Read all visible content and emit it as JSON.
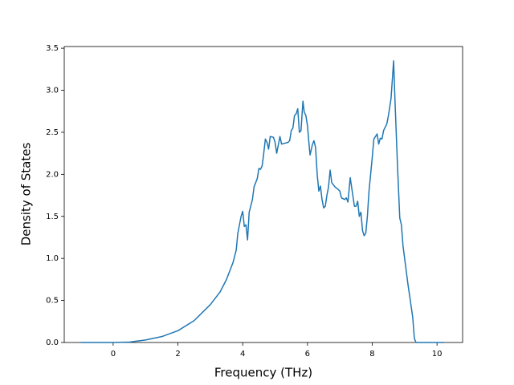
{
  "chart_data": {
    "type": "line",
    "x_label": "Frequency (THz)",
    "y_label": "Density of States",
    "xlim": [
      -1.51,
      10.79
    ],
    "ylim": [
      0,
      3.52
    ],
    "xticks": [
      0,
      2,
      4,
      6,
      8,
      10
    ],
    "yticks": [
      {
        "value": 0,
        "label": "0.0"
      },
      {
        "value": 0.5,
        "label": "0.5"
      },
      {
        "value": 1,
        "label": "1.0"
      },
      {
        "value": 1.5,
        "label": "1.5"
      },
      {
        "value": 2,
        "label": "2.0"
      },
      {
        "value": 2.5,
        "label": "2.5"
      },
      {
        "value": 3,
        "label": "3.0"
      },
      {
        "value": 3.5,
        "label": "3.5"
      }
    ],
    "color": "#1f77b4",
    "x": [
      -1,
      -0.5,
      0,
      0.5,
      1,
      1.5,
      2,
      2.5,
      3,
      3.3,
      3.5,
      3.7,
      3.8,
      3.85,
      3.9,
      3.95,
      4.0,
      4.05,
      4.1,
      4.15,
      4.2,
      4.3,
      4.35,
      4.45,
      4.5,
      4.55,
      4.6,
      4.65,
      4.7,
      4.75,
      4.8,
      4.85,
      4.95,
      5.0,
      5.05,
      5.1,
      5.15,
      5.2,
      5.3,
      5.4,
      5.45,
      5.5,
      5.55,
      5.6,
      5.65,
      5.7,
      5.75,
      5.8,
      5.86,
      5.9,
      5.95,
      6.0,
      6.05,
      6.08,
      6.15,
      6.2,
      6.25,
      6.3,
      6.35,
      6.4,
      6.45,
      6.5,
      6.55,
      6.6,
      6.65,
      6.7,
      6.75,
      6.85,
      6.95,
      7.0,
      7.05,
      7.15,
      7.2,
      7.25,
      7.32,
      7.4,
      7.45,
      7.5,
      7.55,
      7.6,
      7.65,
      7.7,
      7.75,
      7.8,
      7.85,
      7.9,
      8.0,
      8.05,
      8.15,
      8.2,
      8.25,
      8.3,
      8.35,
      8.45,
      8.5,
      8.58,
      8.66,
      8.7,
      8.78,
      8.85,
      8.9,
      8.95,
      9.1,
      9.25,
      9.3,
      9.35,
      10.22
    ],
    "values": [
      0,
      0,
      0,
      0.005,
      0.03,
      0.07,
      0.14,
      0.26,
      0.45,
      0.6,
      0.75,
      0.95,
      1.1,
      1.3,
      1.4,
      1.5,
      1.56,
      1.38,
      1.4,
      1.22,
      1.55,
      1.7,
      1.85,
      1.95,
      2.07,
      2.06,
      2.1,
      2.25,
      2.42,
      2.38,
      2.3,
      2.45,
      2.44,
      2.38,
      2.25,
      2.35,
      2.45,
      2.36,
      2.37,
      2.38,
      2.4,
      2.52,
      2.55,
      2.7,
      2.72,
      2.78,
      2.5,
      2.52,
      2.87,
      2.74,
      2.7,
      2.58,
      2.35,
      2.23,
      2.35,
      2.4,
      2.32,
      2.0,
      1.8,
      1.86,
      1.7,
      1.6,
      1.62,
      1.75,
      1.85,
      2.05,
      1.9,
      1.85,
      1.82,
      1.8,
      1.72,
      1.7,
      1.72,
      1.67,
      1.96,
      1.75,
      1.62,
      1.62,
      1.68,
      1.5,
      1.55,
      1.33,
      1.27,
      1.3,
      1.5,
      1.8,
      2.2,
      2.42,
      2.48,
      2.36,
      2.43,
      2.42,
      2.52,
      2.6,
      2.7,
      2.9,
      3.35,
      2.9,
      2.1,
      1.48,
      1.4,
      1.15,
      0.7,
      0.3,
      0.05,
      0,
      0
    ]
  }
}
